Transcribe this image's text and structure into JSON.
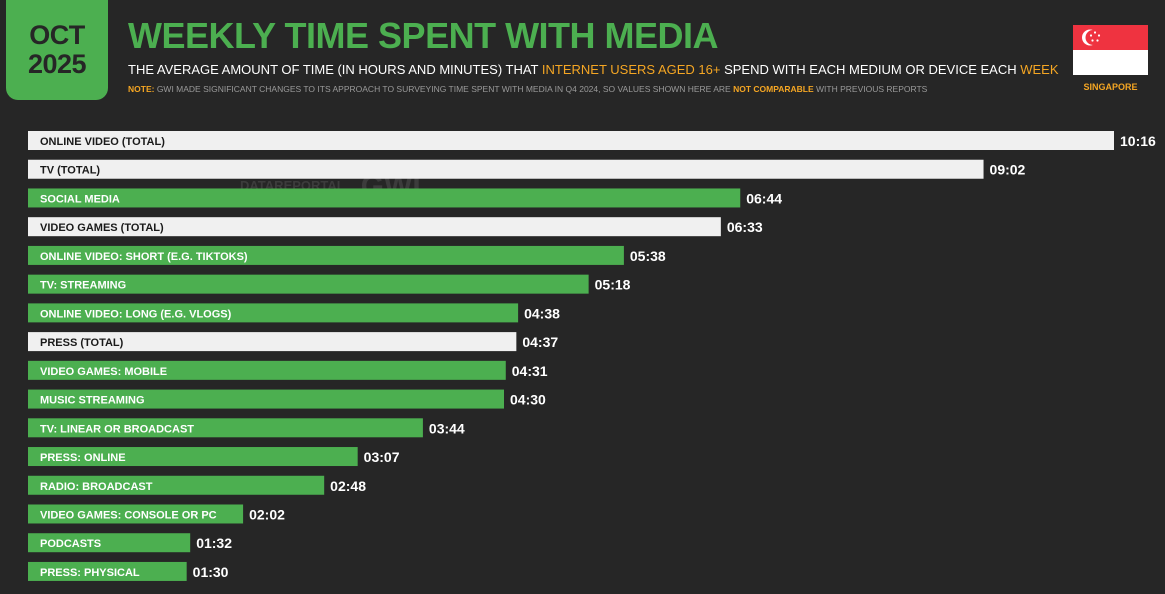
{
  "header": {
    "date_line1": "OCT",
    "date_line2": "2025",
    "title": "WEEKLY TIME SPENT WITH MEDIA",
    "subtitle_part1": "THE AVERAGE AMOUNT OF TIME (IN HOURS AND MINUTES) THAT ",
    "subtitle_highlight1": "INTERNET USERS AGED 16+",
    "subtitle_part2": " SPEND WITH EACH MEDIUM OR DEVICE EACH ",
    "subtitle_highlight2": "WEEK",
    "note_label": "NOTE:",
    "note_part1": " GWI MADE SIGNIFICANT CHANGES TO ITS APPROACH TO SURVEYING TIME SPENT WITH MEDIA IN Q4 2024, SO VALUES SHOWN HERE ARE ",
    "note_highlight": "NOT COMPARABLE",
    "note_part2": " WITH PREVIOUS REPORTS",
    "country": "SINGAPORE",
    "flag_icon": "singapore-flag-icon"
  },
  "watermark": {
    "text1": "DATAREPORTAL",
    "text2": "GWI."
  },
  "colors": {
    "background": "#262626",
    "accent_green": "#4caf50",
    "total_bar": "#f0f0f0",
    "highlight_orange": "#f5a623"
  },
  "chart_data": {
    "type": "bar",
    "orientation": "horizontal",
    "title": "WEEKLY TIME SPENT WITH MEDIA",
    "categories": [
      "ONLINE VIDEO (TOTAL)",
      "TV (TOTAL)",
      "SOCIAL MEDIA",
      "VIDEO GAMES (TOTAL)",
      "ONLINE VIDEO: SHORT (E.G. TIKTOKS)",
      "TV: STREAMING",
      "ONLINE VIDEO: LONG (E.G. VLOGS)",
      "PRESS (TOTAL)",
      "VIDEO GAMES: MOBILE",
      "MUSIC STREAMING",
      "TV: LINEAR OR BROADCAST",
      "PRESS: ONLINE",
      "RADIO: BROADCAST",
      "VIDEO GAMES: CONSOLE OR PC",
      "PODCASTS",
      "PRESS: PHYSICAL"
    ],
    "values_hhmm": [
      "10:16",
      "09:02",
      "06:44",
      "06:33",
      "05:38",
      "05:18",
      "04:38",
      "04:37",
      "04:31",
      "04:30",
      "03:44",
      "03:07",
      "02:48",
      "02:02",
      "01:32",
      "01:30"
    ],
    "values_minutes": [
      616,
      542,
      404,
      393,
      338,
      318,
      278,
      277,
      271,
      270,
      224,
      187,
      168,
      122,
      92,
      90
    ],
    "is_total": [
      true,
      true,
      false,
      true,
      false,
      false,
      false,
      true,
      false,
      false,
      false,
      false,
      false,
      false,
      false,
      false
    ]
  }
}
